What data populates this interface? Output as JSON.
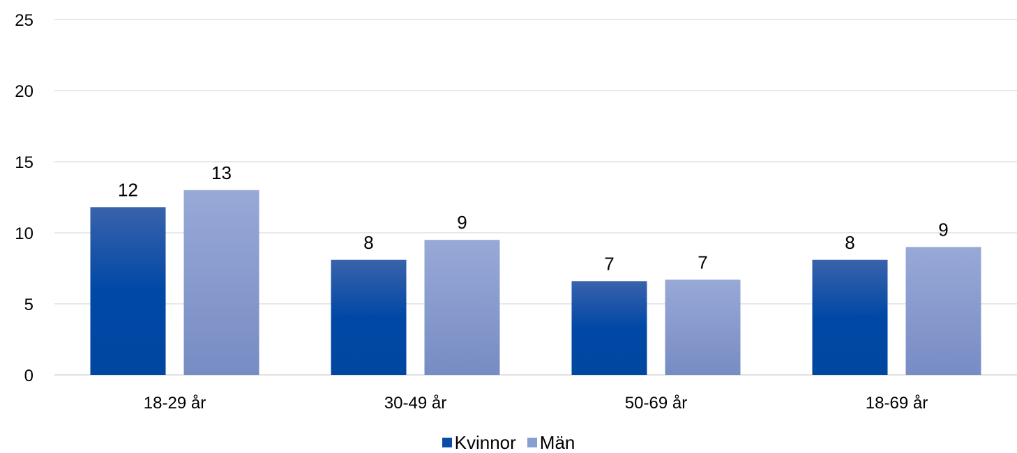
{
  "chart_data": {
    "type": "bar",
    "title": "",
    "xlabel": "",
    "ylabel": "",
    "ylim": [
      0,
      25
    ],
    "yticks": [
      "0",
      "5",
      "10",
      "15",
      "20",
      "25"
    ],
    "grid": true,
    "legend_position": "bottom",
    "categories": [
      "18-29 år",
      "30-49 år",
      "50-69 år",
      "18-69 år"
    ],
    "series": [
      {
        "name": "Kvinnor",
        "values": [
          11.8,
          8.1,
          6.6,
          8.1
        ],
        "labels": [
          "12",
          "8",
          "7",
          "8"
        ],
        "color": "#1f4e9c"
      },
      {
        "name": "Män",
        "values": [
          13.0,
          9.5,
          6.7,
          9.0
        ],
        "labels": [
          "13",
          "9",
          "7",
          "9"
        ],
        "color": "#8a9fd1"
      }
    ]
  },
  "colors": {
    "kvinnor_top": "#3a5fa8",
    "kvinnor_bottom": "#0047a3",
    "man_top": "#97a8d6",
    "man_bottom": "#7a8fc5",
    "gridline": "#d9d9d9"
  }
}
